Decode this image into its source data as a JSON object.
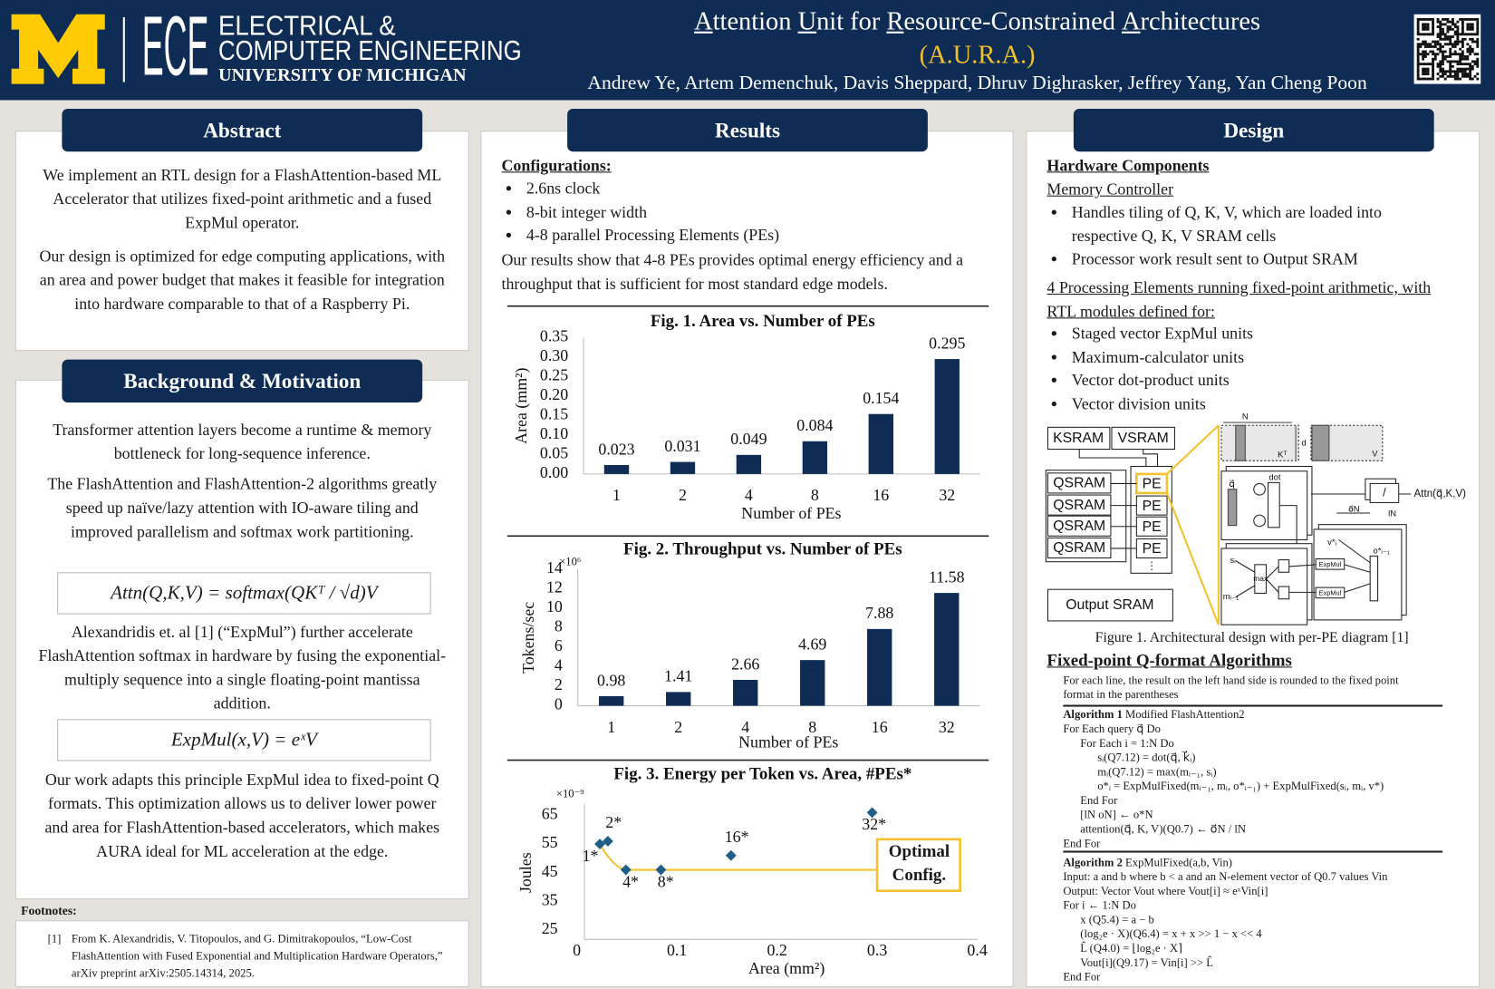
{
  "header": {
    "logo_text": "ECE",
    "dept_line1": "ELECTRICAL &",
    "dept_line2": "COMPUTER ENGINEERING",
    "university": "UNIVERSITY OF MICHIGAN",
    "title_words": [
      "Attention",
      "Unit",
      "for",
      "Resource-Constrained",
      "Architectures"
    ],
    "acronym": "(A.U.R.A.)",
    "authors": "Andrew Ye, Artem Demenchuk, Davis Sheppard, Dhruv Dighrasker, Jeffrey Yang, Yan Cheng Poon"
  },
  "abstract": {
    "heading": "Abstract",
    "paragraphs": [
      "We implement an RTL design for a FlashAttention-based ML Accelerator that utilizes fixed-point arithmetic and a fused ExpMul operator.",
      "Our design is optimized for edge computing applications, with an area and power budget that makes it feasible for integration into hardware comparable to that of a Raspberry Pi."
    ]
  },
  "background": {
    "heading": "Background & Motivation",
    "paragraphs": [
      "Transformer attention layers become a runtime & memory bottleneck for long-sequence inference.",
      "The FlashAttention and FlashAttention-2 algorithms greatly speed up naïve/lazy attention with IO-aware tiling and improved parallelism and softmax work partitioning.",
      "Alexandridis et. al [1] (“ExpMul”) further accelerate FlashAttention softmax in hardware by fusing the exponential-multiply sequence into a single floating-point mantissa addition.",
      "Our work adapts this principle ExpMul idea to fixed-point Q formats. This optimization allows us to deliver lower power and area for FlashAttention-based accelerators, which makes AURA ideal for ML acceleration at the edge."
    ],
    "equations": [
      "Attn(Q,K,V)  =  softmax(QKᵀ / √d)V",
      "ExpMul(x,V)  =  eˣV"
    ]
  },
  "footnotes": {
    "label": "Footnotes:",
    "items": [
      {
        "marker": "[1]",
        "text": "From K. Alexandridis, V. Titopoulos, and G. Dimitrakopoulos, “Low-Cost FlashAttention with Fused Exponential and Multiplication Hardware Operators,” arXiv preprint arXiv:2505.14314, 2025."
      }
    ]
  },
  "results": {
    "heading": "Results",
    "config_title": "Configurations:",
    "config_items": [
      "2.6ns clock",
      "8-bit integer width",
      "4-8 parallel Processing Elements (PEs)"
    ],
    "summary": "Our results show that 4-8 PEs provides optimal energy efficiency and a throughput that is sufficient for most standard edge models."
  },
  "chart_data": [
    {
      "type": "bar",
      "title": "Fig. 1. Area vs. Number of PEs",
      "x_label": "Number of PEs",
      "y_label": "Area (mm²)",
      "categories": [
        "1",
        "2",
        "4",
        "8",
        "16",
        "32"
      ],
      "values": [
        0.023,
        0.031,
        0.049,
        0.084,
        0.154,
        0.295
      ],
      "color": "#0e2c54",
      "ylim": [
        0,
        0.35
      ],
      "yticks": [
        {
          "value": 0,
          "label": "0.00"
        },
        {
          "value": 0.05,
          "label": "0.05"
        },
        {
          "value": 0.1,
          "label": "0.10"
        },
        {
          "value": 0.15,
          "label": "0.15"
        },
        {
          "value": 0.2,
          "label": "0.20"
        },
        {
          "value": 0.25,
          "label": "0.25"
        },
        {
          "value": 0.3,
          "label": "0.30"
        },
        {
          "value": 0.35,
          "label": "0.35"
        }
      ]
    },
    {
      "type": "bar",
      "title": "Fig. 2. Throughput vs. Number of PEs",
      "x_label": "Number of PEs",
      "y_label": "Tokens/sec",
      "y_multiplier": "×10⁶",
      "categories": [
        "1",
        "2",
        "4",
        "8",
        "16",
        "32"
      ],
      "values": [
        0.98,
        1.41,
        2.66,
        4.69,
        7.88,
        11.58
      ],
      "color": "#0e2c54",
      "ylim": [
        0,
        14
      ],
      "yticks": [
        0,
        2,
        4,
        6,
        8,
        10,
        12,
        14
      ]
    },
    {
      "type": "scatter",
      "title": "Fig. 3. Energy per Token vs. Area, #PEs*",
      "x_label": "Area (mm²)",
      "y_label": "Joules",
      "y_multiplier": "×10⁻⁹",
      "x": [
        0.023,
        0.031,
        0.049,
        0.084,
        0.154,
        0.295
      ],
      "values": [
        55,
        56,
        46,
        46,
        51,
        66
      ],
      "point_labels": [
        "1*",
        "2*",
        "4*",
        "8*",
        "16*",
        "32*"
      ],
      "color": "#1f5f86",
      "xlim": [
        0,
        0.4
      ],
      "xticks": [
        0,
        0.1,
        0.2,
        0.3,
        0.4
      ],
      "ylim": [
        25,
        65
      ],
      "yticks": [
        25,
        35,
        45,
        55,
        65
      ],
      "annotation": "Optimal Config.",
      "highlight_color": "#f2c230"
    }
  ],
  "design": {
    "heading": "Design",
    "hw_title": "Hardware Components",
    "mem_title": "Memory Controller",
    "mem_items": [
      "Handles tiling of Q, K, V, which are loaded into respective Q, K, V SRAM cells",
      "Processor work result sent to Output SRAM"
    ],
    "pe_title": "4 Processing Elements running fixed-point arithmetic, with RTL modules defined for:",
    "pe_items": [
      "Staged vector ExpMul units",
      "Maximum-calculator units",
      "Vector dot-product units",
      "Vector division units"
    ],
    "diagram_labels": [
      "KSRAM",
      "VSRAM",
      "QSRAM",
      "QSRAM",
      "QSRAM",
      "QSRAM",
      "PE",
      "PE",
      "PE",
      "PE",
      "Output SRAM",
      "N",
      "d",
      "Kᵀ",
      "V",
      "dot",
      "max",
      "ExpMul",
      "ExpMul",
      "Attn(q⃗,K,V)",
      "o⃗N",
      "lN",
      "q⃗",
      "sᵢ",
      "mᵢ₋₁",
      "v*ᵢ",
      "o*ᵢ₋₁",
      "/"
    ],
    "figure_caption": "Figure 1. Architectural design with per-PE diagram [1]",
    "qformat_title": "Fixed-point Q-format Algorithms",
    "qformat_note": "For each line, the result on the left hand side is rounded to the fixed point format in the parentheses",
    "algorithm1": {
      "label": "Algorithm 1",
      "name": "Modified FlashAttention2",
      "lines": [
        "For Each query q⃗ Do",
        "For Each i = 1:N Do",
        "sᵢ(Q7.12) = dot(q⃗, k⃗ᵢ)",
        "mᵢ(Q7.12) = max(mᵢ₋₁, sᵢ)",
        "o*ᵢ = ExpMulFixed(mᵢ₋₁, mᵢ, o*ᵢ₋₁) + ExpMulFixed(sᵢ, mᵢ, v*)",
        "End For",
        "[lN oN] ← o*N",
        "attention(q⃗, K, V)(Q0.7) ← o⃗N / lN",
        "End For"
      ]
    },
    "algorithm2": {
      "label": "Algorithm 2",
      "name": "ExpMulFixed(a,b, Vin)",
      "lines": [
        "Input:   a and b where b < a and an N-element vector of Q0.7 values Vin",
        "Output:   Vector Vout where Vout[i] ≈ eˣVin[i]",
        "For i ← 1:N Do",
        "x (Q5.4) = a − b",
        "(log₂e · X)(Q6.4) = x + x >> 1 − x << 4",
        "L̂ (Q4.0) = ⌊log₂e · X⌉",
        "Vout[i](Q9.17) = Vin[i] >> L̂",
        "End For"
      ]
    }
  }
}
